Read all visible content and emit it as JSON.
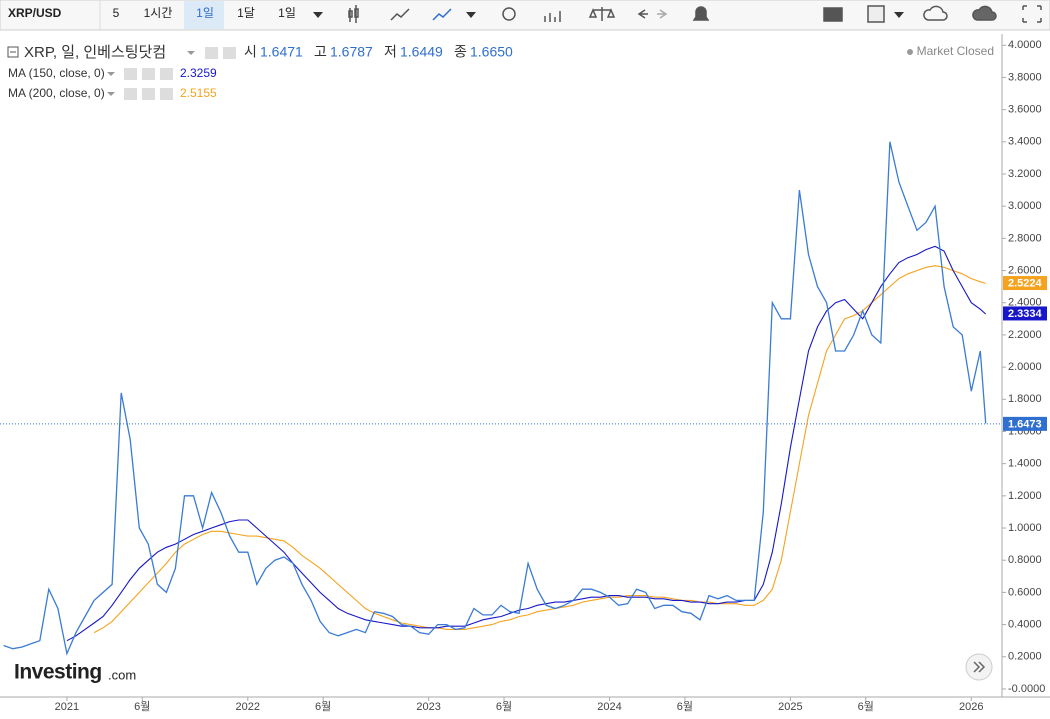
{
  "toolbar": {
    "symbol": "XRP/USD",
    "buttons": [
      "5",
      "1시간",
      "1일",
      "1달",
      "1일"
    ]
  },
  "logo": {
    "name": "Investing",
    "suffix": ".com"
  },
  "chart_data": {
    "type": "line",
    "title": "XRP, 일, 인베스팅닷컴",
    "status": "Market Closed",
    "ohlc": [
      {
        "label": "시",
        "value": "1.6471"
      },
      {
        "label": "고",
        "value": "1.6787"
      },
      {
        "label": "저",
        "value": "1.6449"
      },
      {
        "label": "종",
        "value": "1.6650"
      }
    ],
    "last_price": 1.6473,
    "price_color": "#2f6fd0",
    "x": [
      2020.65,
      2020.7,
      2020.75,
      2020.8,
      2020.85,
      2020.9,
      2020.95,
      2021.0,
      2021.05,
      2021.1,
      2021.15,
      2021.2,
      2021.25,
      2021.3,
      2021.35,
      2021.4,
      2021.45,
      2021.5,
      2021.55,
      2021.6,
      2021.65,
      2021.7,
      2021.75,
      2021.8,
      2021.85,
      2021.9,
      2021.95,
      2022.0,
      2022.05,
      2022.1,
      2022.15,
      2022.2,
      2022.25,
      2022.3,
      2022.35,
      2022.4,
      2022.45,
      2022.5,
      2022.55,
      2022.6,
      2022.65,
      2022.7,
      2022.75,
      2022.8,
      2022.85,
      2022.9,
      2022.95,
      2023.0,
      2023.05,
      2023.1,
      2023.15,
      2023.2,
      2023.25,
      2023.3,
      2023.35,
      2023.4,
      2023.45,
      2023.5,
      2023.55,
      2023.6,
      2023.65,
      2023.7,
      2023.75,
      2023.8,
      2023.85,
      2023.9,
      2023.95,
      2024.0,
      2024.05,
      2024.1,
      2024.15,
      2024.2,
      2024.25,
      2024.3,
      2024.35,
      2024.4,
      2024.45,
      2024.5,
      2024.55,
      2024.6,
      2024.65,
      2024.7,
      2024.75,
      2024.8,
      2024.85,
      2024.9,
      2024.95,
      2025.0,
      2025.05,
      2025.1,
      2025.15,
      2025.2,
      2025.25,
      2025.3,
      2025.35,
      2025.4,
      2025.45,
      2025.5,
      2025.55,
      2025.6,
      2025.65,
      2025.7,
      2025.75,
      2025.8,
      2025.85,
      2025.9,
      2025.95,
      2026.0,
      2026.05,
      2026.08
    ],
    "series": [
      {
        "name": "XRP",
        "color": "#3a7bd5",
        "values": [
          0.27,
          0.25,
          0.26,
          0.28,
          0.3,
          0.62,
          0.5,
          0.22,
          0.35,
          0.45,
          0.55,
          0.6,
          0.65,
          1.84,
          1.55,
          1.0,
          0.9,
          0.65,
          0.6,
          0.75,
          1.2,
          1.2,
          1.0,
          1.22,
          1.1,
          0.95,
          0.85,
          0.85,
          0.65,
          0.75,
          0.8,
          0.82,
          0.78,
          0.65,
          0.55,
          0.42,
          0.35,
          0.33,
          0.35,
          0.37,
          0.35,
          0.48,
          0.47,
          0.45,
          0.4,
          0.39,
          0.35,
          0.34,
          0.4,
          0.4,
          0.37,
          0.38,
          0.5,
          0.46,
          0.46,
          0.52,
          0.48,
          0.47,
          0.78,
          0.62,
          0.52,
          0.5,
          0.52,
          0.55,
          0.62,
          0.62,
          0.6,
          0.57,
          0.52,
          0.53,
          0.62,
          0.6,
          0.5,
          0.52,
          0.52,
          0.48,
          0.47,
          0.43,
          0.58,
          0.56,
          0.58,
          0.55,
          0.55,
          0.55,
          1.1,
          2.4,
          2.3,
          2.3,
          3.1,
          2.7,
          2.5,
          2.4,
          2.1,
          2.1,
          2.2,
          2.35,
          2.2,
          2.15,
          3.4,
          3.15,
          3.0,
          2.85,
          2.9,
          3.0,
          2.5,
          2.25,
          2.2,
          1.85,
          2.1,
          1.65
        ]
      },
      {
        "name": "MA (150, close, 0)",
        "color": "#1717c9",
        "legend_value": 2.3259,
        "last_value": 2.3334,
        "values": [
          null,
          null,
          null,
          null,
          null,
          null,
          null,
          0.3,
          0.33,
          0.37,
          0.41,
          0.45,
          0.52,
          0.6,
          0.68,
          0.75,
          0.8,
          0.85,
          0.88,
          0.9,
          0.93,
          0.96,
          0.98,
          1.0,
          1.02,
          1.04,
          1.05,
          1.05,
          1.0,
          0.95,
          0.9,
          0.85,
          0.78,
          0.72,
          0.66,
          0.6,
          0.55,
          0.5,
          0.47,
          0.45,
          0.43,
          0.42,
          0.41,
          0.4,
          0.39,
          0.39,
          0.38,
          0.38,
          0.38,
          0.39,
          0.39,
          0.39,
          0.41,
          0.43,
          0.44,
          0.45,
          0.47,
          0.49,
          0.5,
          0.52,
          0.53,
          0.54,
          0.54,
          0.55,
          0.56,
          0.57,
          0.57,
          0.58,
          0.58,
          0.57,
          0.57,
          0.57,
          0.56,
          0.56,
          0.55,
          0.55,
          0.54,
          0.54,
          0.53,
          0.53,
          0.54,
          0.54,
          0.55,
          0.55,
          0.65,
          0.85,
          1.15,
          1.5,
          1.8,
          2.1,
          2.25,
          2.35,
          2.4,
          2.42,
          2.36,
          2.3,
          2.4,
          2.5,
          2.58,
          2.65,
          2.68,
          2.7,
          2.73,
          2.75,
          2.72,
          2.6,
          2.5,
          2.4,
          2.36,
          2.33
        ]
      },
      {
        "name": "MA (200, close, 0)",
        "color": "#f5a31f",
        "legend_value": 2.5155,
        "last_value": 2.5224,
        "values": [
          null,
          null,
          null,
          null,
          null,
          null,
          null,
          null,
          null,
          null,
          0.35,
          0.38,
          0.42,
          0.48,
          0.54,
          0.6,
          0.66,
          0.72,
          0.78,
          0.85,
          0.9,
          0.93,
          0.96,
          0.98,
          0.98,
          0.97,
          0.96,
          0.95,
          0.95,
          0.94,
          0.93,
          0.92,
          0.88,
          0.83,
          0.79,
          0.75,
          0.7,
          0.65,
          0.6,
          0.55,
          0.5,
          0.47,
          0.45,
          0.43,
          0.41,
          0.4,
          0.39,
          0.38,
          0.38,
          0.37,
          0.37,
          0.37,
          0.38,
          0.39,
          0.4,
          0.42,
          0.43,
          0.45,
          0.46,
          0.48,
          0.49,
          0.5,
          0.51,
          0.52,
          0.54,
          0.55,
          0.56,
          0.57,
          0.57,
          0.58,
          0.58,
          0.58,
          0.57,
          0.57,
          0.56,
          0.55,
          0.55,
          0.54,
          0.54,
          0.53,
          0.53,
          0.53,
          0.52,
          0.52,
          0.55,
          0.62,
          0.8,
          1.1,
          1.4,
          1.7,
          1.9,
          2.1,
          2.2,
          2.3,
          2.32,
          2.35,
          2.4,
          2.45,
          2.5,
          2.55,
          2.58,
          2.6,
          2.62,
          2.63,
          2.62,
          2.6,
          2.58,
          2.55,
          2.53,
          2.52
        ]
      }
    ],
    "xlim": [
      2020.63,
      2026.17
    ],
    "xticks": [
      {
        "value": 2021,
        "label": "2021"
      },
      {
        "value": 2021.4167,
        "label": "6월"
      },
      {
        "value": 2022,
        "label": "2022"
      },
      {
        "value": 2022.4167,
        "label": "6월"
      },
      {
        "value": 2023,
        "label": "2023"
      },
      {
        "value": 2023.4167,
        "label": "6월"
      },
      {
        "value": 2024,
        "label": "2024"
      },
      {
        "value": 2024.4167,
        "label": "6월"
      },
      {
        "value": 2025,
        "label": "2025"
      },
      {
        "value": 2025.4167,
        "label": "6월"
      },
      {
        "value": 2026,
        "label": "2026"
      }
    ],
    "ylim": [
      -0.05,
      4.07
    ],
    "yticks": [
      {
        "value": 4,
        "label": "4.0000"
      },
      {
        "value": 3.8,
        "label": "3.8000"
      },
      {
        "value": 3.6,
        "label": "3.6000"
      },
      {
        "value": 3.4,
        "label": "3.4000"
      },
      {
        "value": 3.2,
        "label": "3.2000"
      },
      {
        "value": 3,
        "label": "3.0000"
      },
      {
        "value": 2.8,
        "label": "2.8000"
      },
      {
        "value": 2.6,
        "label": "2.6000"
      },
      {
        "value": 2.4,
        "label": "2.4000"
      },
      {
        "value": 2.2,
        "label": "2.2000"
      },
      {
        "value": 2,
        "label": "2.0000"
      },
      {
        "value": 1.8,
        "label": "1.8000"
      },
      {
        "value": 1.6,
        "label": "1.6000"
      },
      {
        "value": 1.4,
        "label": "1.4000"
      },
      {
        "value": 1.2,
        "label": "1.2000"
      },
      {
        "value": 1,
        "label": "1.0000"
      },
      {
        "value": 0.8,
        "label": "0.8000"
      },
      {
        "value": 0.6,
        "label": "0.6000"
      },
      {
        "value": 0.4,
        "label": "0.4000"
      },
      {
        "value": 0.2,
        "label": "0.2000"
      },
      {
        "value": 0,
        "label": "-0.0000"
      }
    ],
    "grid": false
  }
}
